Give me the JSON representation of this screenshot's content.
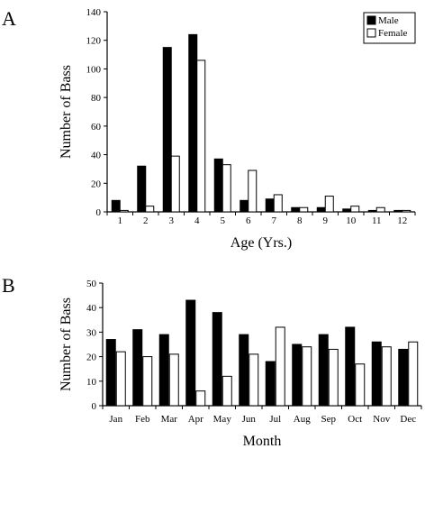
{
  "chart_data": [
    {
      "panel": "A",
      "type": "bar",
      "xlabel": "Age (Yrs.)",
      "ylabel": "Number of Bass",
      "ylim": [
        0,
        140
      ],
      "yticks": [
        0,
        20,
        40,
        60,
        80,
        100,
        120,
        140
      ],
      "categories": [
        "1",
        "2",
        "3",
        "4",
        "5",
        "6",
        "7",
        "8",
        "9",
        "10",
        "11",
        "12"
      ],
      "series": [
        {
          "name": "Male",
          "color": "#000000",
          "values": [
            8,
            32,
            115,
            124,
            37,
            8,
            9,
            3,
            3,
            2,
            1,
            1
          ]
        },
        {
          "name": "Female",
          "color": "#ffffff",
          "values": [
            1,
            4,
            39,
            106,
            33,
            29,
            12,
            3,
            11,
            4,
            3,
            1
          ]
        }
      ],
      "legend": "top-right",
      "grid": false
    },
    {
      "panel": "B",
      "type": "bar",
      "xlabel": "Month",
      "ylabel": "Number of Bass",
      "ylim": [
        0,
        50
      ],
      "yticks": [
        0,
        10,
        20,
        30,
        40,
        50
      ],
      "categories": [
        "Jan",
        "Feb",
        "Mar",
        "Apr",
        "May",
        "Jun",
        "Jul",
        "Aug",
        "Sep",
        "Oct",
        "Nov",
        "Dec"
      ],
      "series": [
        {
          "color": "#000000",
          "values": [
            27,
            31,
            29,
            43,
            38,
            29,
            18,
            25,
            29,
            32,
            26,
            23
          ]
        },
        {
          "color": "#ffffff",
          "values": [
            22,
            20,
            21,
            6,
            12,
            21,
            32,
            24,
            23,
            17,
            24,
            26
          ]
        }
      ],
      "grid": false
    }
  ]
}
